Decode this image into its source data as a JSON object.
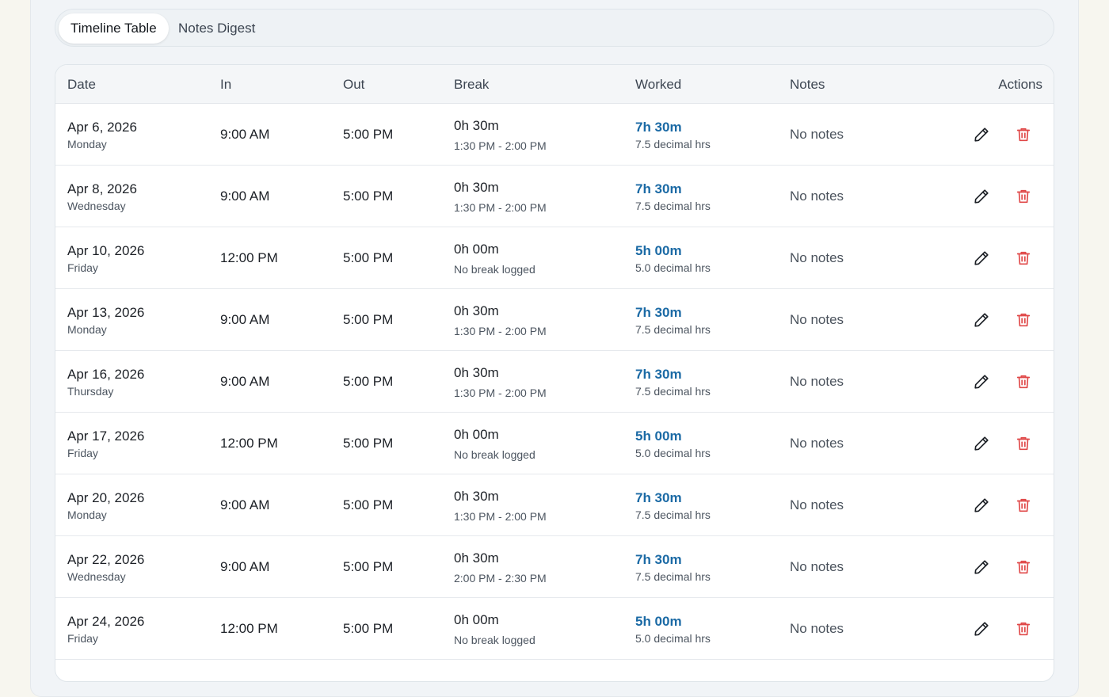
{
  "tabs": [
    {
      "label": "Timeline Table",
      "active": true
    },
    {
      "label": "Notes Digest",
      "active": false
    }
  ],
  "table": {
    "headers": {
      "date": "Date",
      "in": "In",
      "out": "Out",
      "break": "Break",
      "worked": "Worked",
      "notes": "Notes",
      "actions": "Actions"
    },
    "rows": [
      {
        "date": "Apr 6, 2026",
        "weekday": "Monday",
        "in": "9:00 AM",
        "out": "5:00 PM",
        "break_duration": "0h 30m",
        "break_window": "1:30 PM - 2:00 PM",
        "worked": "7h 30m",
        "worked_decimal": "7.5 decimal hrs",
        "notes": "No notes"
      },
      {
        "date": "Apr 8, 2026",
        "weekday": "Wednesday",
        "in": "9:00 AM",
        "out": "5:00 PM",
        "break_duration": "0h 30m",
        "break_window": "1:30 PM - 2:00 PM",
        "worked": "7h 30m",
        "worked_decimal": "7.5 decimal hrs",
        "notes": "No notes"
      },
      {
        "date": "Apr 10, 2026",
        "weekday": "Friday",
        "in": "12:00 PM",
        "out": "5:00 PM",
        "break_duration": "0h 00m",
        "break_window": "No break logged",
        "worked": "5h 00m",
        "worked_decimal": "5.0 decimal hrs",
        "notes": "No notes"
      },
      {
        "date": "Apr 13, 2026",
        "weekday": "Monday",
        "in": "9:00 AM",
        "out": "5:00 PM",
        "break_duration": "0h 30m",
        "break_window": "1:30 PM - 2:00 PM",
        "worked": "7h 30m",
        "worked_decimal": "7.5 decimal hrs",
        "notes": "No notes"
      },
      {
        "date": "Apr 16, 2026",
        "weekday": "Thursday",
        "in": "9:00 AM",
        "out": "5:00 PM",
        "break_duration": "0h 30m",
        "break_window": "1:30 PM - 2:00 PM",
        "worked": "7h 30m",
        "worked_decimal": "7.5 decimal hrs",
        "notes": "No notes"
      },
      {
        "date": "Apr 17, 2026",
        "weekday": "Friday",
        "in": "12:00 PM",
        "out": "5:00 PM",
        "break_duration": "0h 00m",
        "break_window": "No break logged",
        "worked": "5h 00m",
        "worked_decimal": "5.0 decimal hrs",
        "notes": "No notes"
      },
      {
        "date": "Apr 20, 2026",
        "weekday": "Monday",
        "in": "9:00 AM",
        "out": "5:00 PM",
        "break_duration": "0h 30m",
        "break_window": "1:30 PM - 2:00 PM",
        "worked": "7h 30m",
        "worked_decimal": "7.5 decimal hrs",
        "notes": "No notes"
      },
      {
        "date": "Apr 22, 2026",
        "weekday": "Wednesday",
        "in": "9:00 AM",
        "out": "5:00 PM",
        "break_duration": "0h 30m",
        "break_window": "2:00 PM - 2:30 PM",
        "worked": "7h 30m",
        "worked_decimal": "7.5 decimal hrs",
        "notes": "No notes"
      },
      {
        "date": "Apr 24, 2026",
        "weekday": "Friday",
        "in": "12:00 PM",
        "out": "5:00 PM",
        "break_duration": "0h 00m",
        "break_window": "No break logged",
        "worked": "5h 00m",
        "worked_decimal": "5.0 decimal hrs",
        "notes": "No notes"
      }
    ]
  },
  "icons": {
    "edit": "pencil-icon",
    "delete": "trash-icon"
  },
  "colors": {
    "worked_accent": "#1b6aa5",
    "delete_accent": "#e04848"
  }
}
